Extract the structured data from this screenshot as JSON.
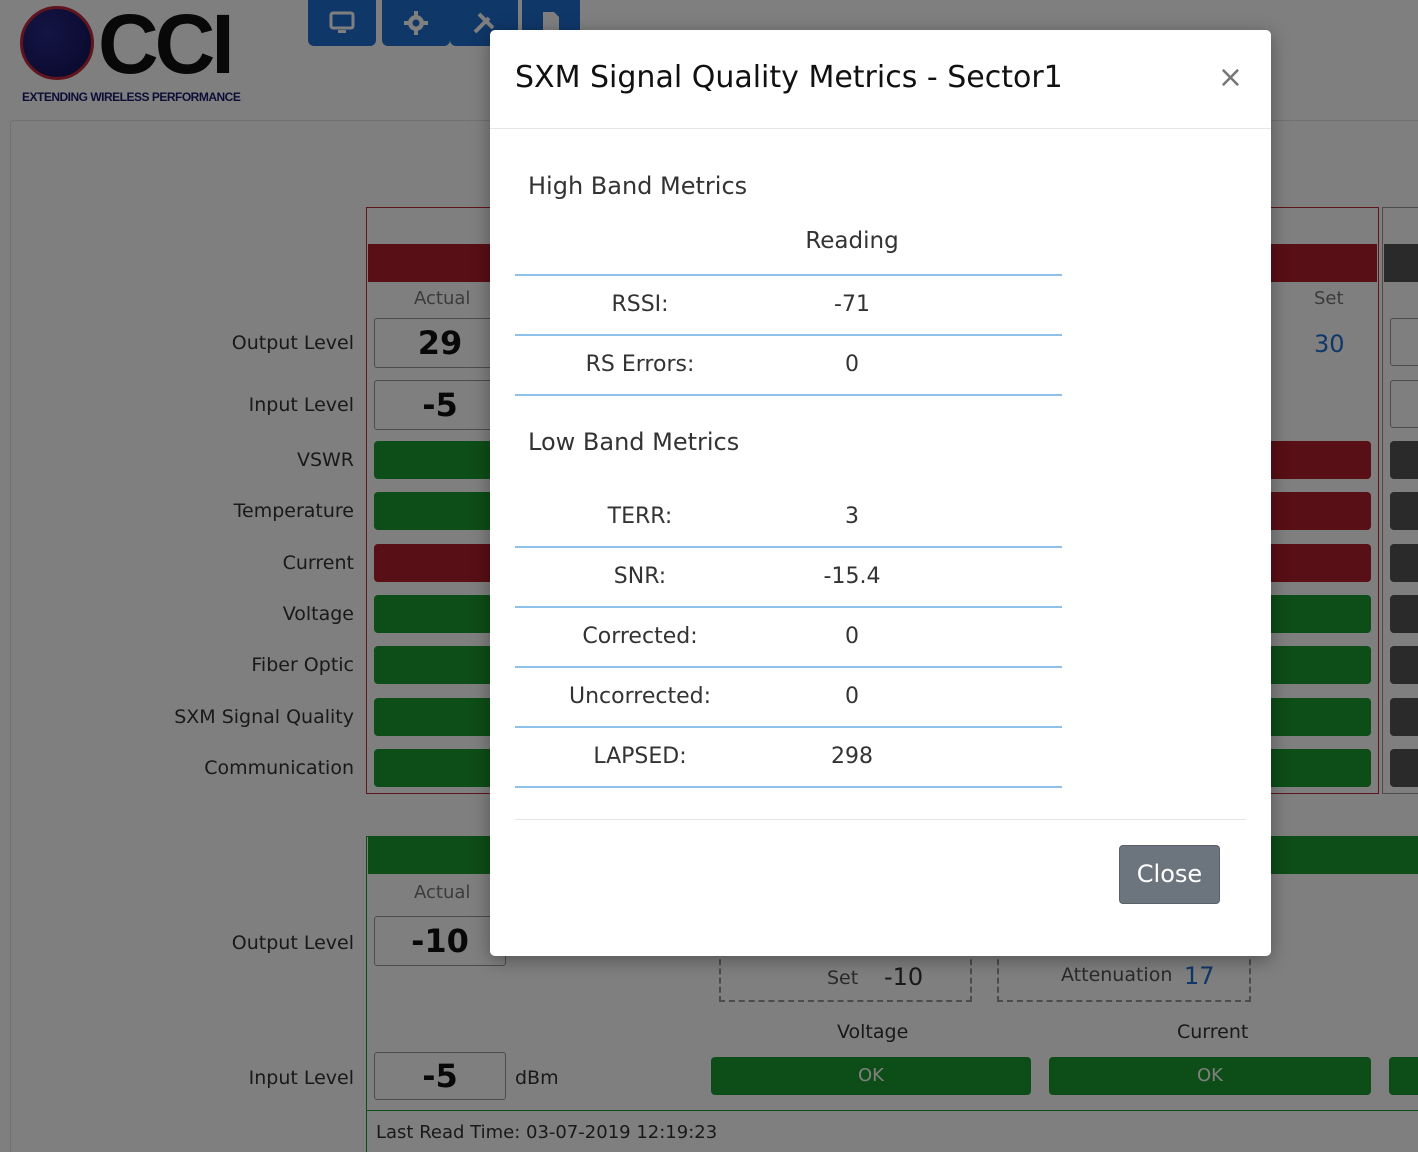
{
  "brand": {
    "logo_text": "CCI",
    "tagline": "EXTENDING WIRELESS PERFORMANCE"
  },
  "toolbar": {
    "buttons": [
      {
        "icon": "monitor-icon"
      },
      {
        "icon": "gear-icon"
      },
      {
        "icon": "tools-icon"
      },
      {
        "icon": "file-icon"
      }
    ]
  },
  "upper_section": {
    "column_actual": "Actual",
    "column_set": "Set",
    "output_level_label": "Output Level",
    "output_level_actual": "29",
    "output_level_set": "30",
    "input_level_label": "Input Level",
    "input_level_actual": "-5",
    "status_rows": [
      {
        "label": "VSWR",
        "left": "green",
        "right": "red"
      },
      {
        "label": "Temperature",
        "left": "green",
        "right": "red"
      },
      {
        "label": "Current",
        "left": "red",
        "right": "red"
      },
      {
        "label": "Voltage",
        "left": "green",
        "right": "green"
      },
      {
        "label": "Fiber Optic",
        "left": "green",
        "right": "green"
      },
      {
        "label": "SXM Signal Quality",
        "left": "green",
        "right": "green"
      },
      {
        "label": "Communication",
        "left": "green",
        "right": "green"
      }
    ]
  },
  "lower_section": {
    "column_actual": "Actual",
    "output_level_label": "Output Level",
    "output_level_actual": "-10",
    "set_label": "Set",
    "set_value": "-10",
    "attenuation_label": "Attenuation",
    "attenuation_value": "17",
    "voltage_label": "Voltage",
    "voltage_status": "OK",
    "current_label": "Current",
    "current_status": "OK",
    "input_level_label": "Input Level",
    "input_level_actual": "-5",
    "input_unit": "dBm",
    "last_read": "Last Read Time: 03-07-2019 12:19:23"
  },
  "modal": {
    "title": "SXM Signal Quality Metrics - Sector1",
    "close_x": "×",
    "high_band": {
      "title": "High Band Metrics",
      "column_reading": "Reading",
      "rows": [
        {
          "label": "RSSI:",
          "value": "-71"
        },
        {
          "label": "RS Errors:",
          "value": "0"
        }
      ]
    },
    "low_band": {
      "title": "Low Band Metrics",
      "rows": [
        {
          "label": "TERR:",
          "value": "3"
        },
        {
          "label": "SNR:",
          "value": "-15.4"
        },
        {
          "label": "Corrected:",
          "value": "0"
        },
        {
          "label": "Uncorrected:",
          "value": "0"
        },
        {
          "label": "LAPSED:",
          "value": "298"
        }
      ]
    },
    "close_button": "Close"
  },
  "colors": {
    "accent_blue": "#1f6fd0",
    "status_green": "#1b9b2e",
    "status_red": "#b01e2a",
    "table_rule": "#8ec1ec"
  }
}
